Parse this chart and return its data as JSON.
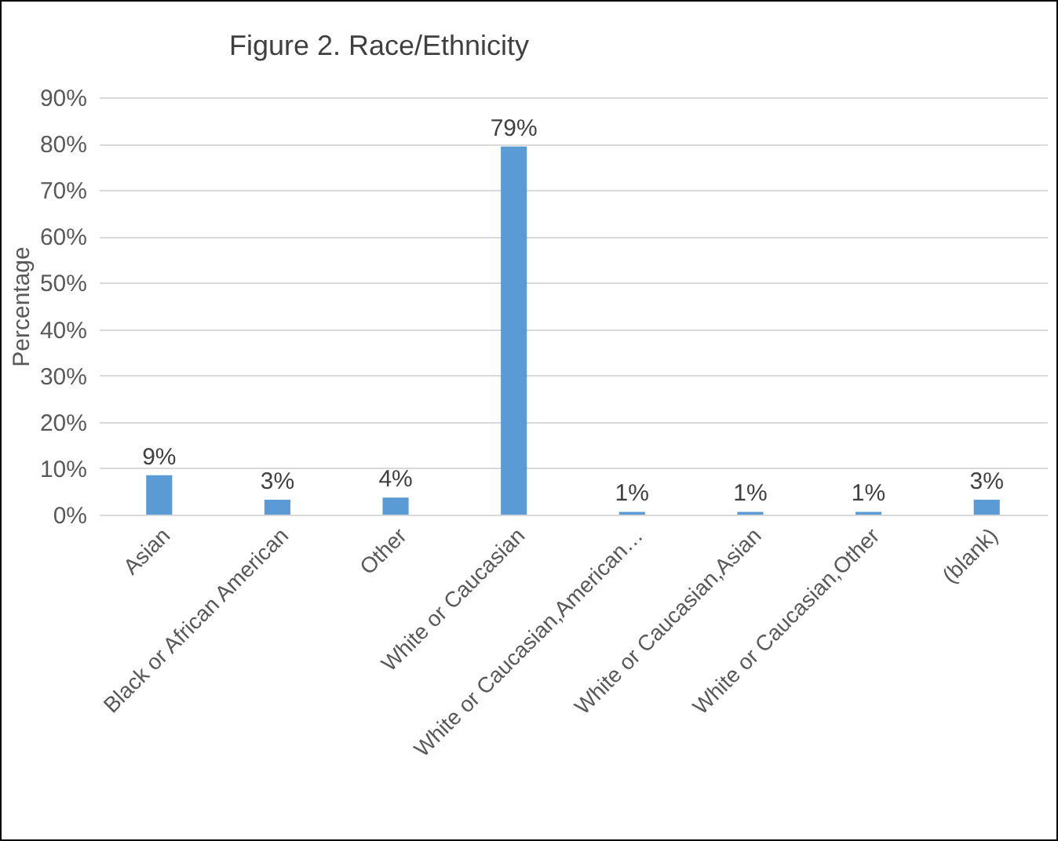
{
  "chart_data": {
    "type": "bar",
    "title": "Figure 2. Race/Ethnicity",
    "ylabel": "Percentage",
    "categories": [
      "Asian",
      "Black or African American",
      "Other",
      "White or Caucasian",
      "White or Caucasian,American…",
      "White or Caucasian,Asian",
      "White or Caucasian,Other",
      "(blank)"
    ],
    "values": [
      8.5,
      3.2,
      3.7,
      79.4,
      0.6,
      0.6,
      0.6,
      3.2
    ],
    "value_labels": [
      "9%",
      "3%",
      "4%",
      "79%",
      "1%",
      "1%",
      "1%",
      "3%"
    ],
    "color": "#5b9bd5",
    "ylim": [
      0,
      90
    ],
    "yticks": [
      {
        "value": 0,
        "label": "0%"
      },
      {
        "value": 10,
        "label": "10%"
      },
      {
        "value": 20,
        "label": "20%"
      },
      {
        "value": 30,
        "label": "30%"
      },
      {
        "value": 40,
        "label": "40%"
      },
      {
        "value": 50,
        "label": "50%"
      },
      {
        "value": 60,
        "label": "60%"
      },
      {
        "value": 70,
        "label": "70%"
      },
      {
        "value": 80,
        "label": "80%"
      },
      {
        "value": 90,
        "label": "90%"
      }
    ],
    "grid": "y"
  }
}
